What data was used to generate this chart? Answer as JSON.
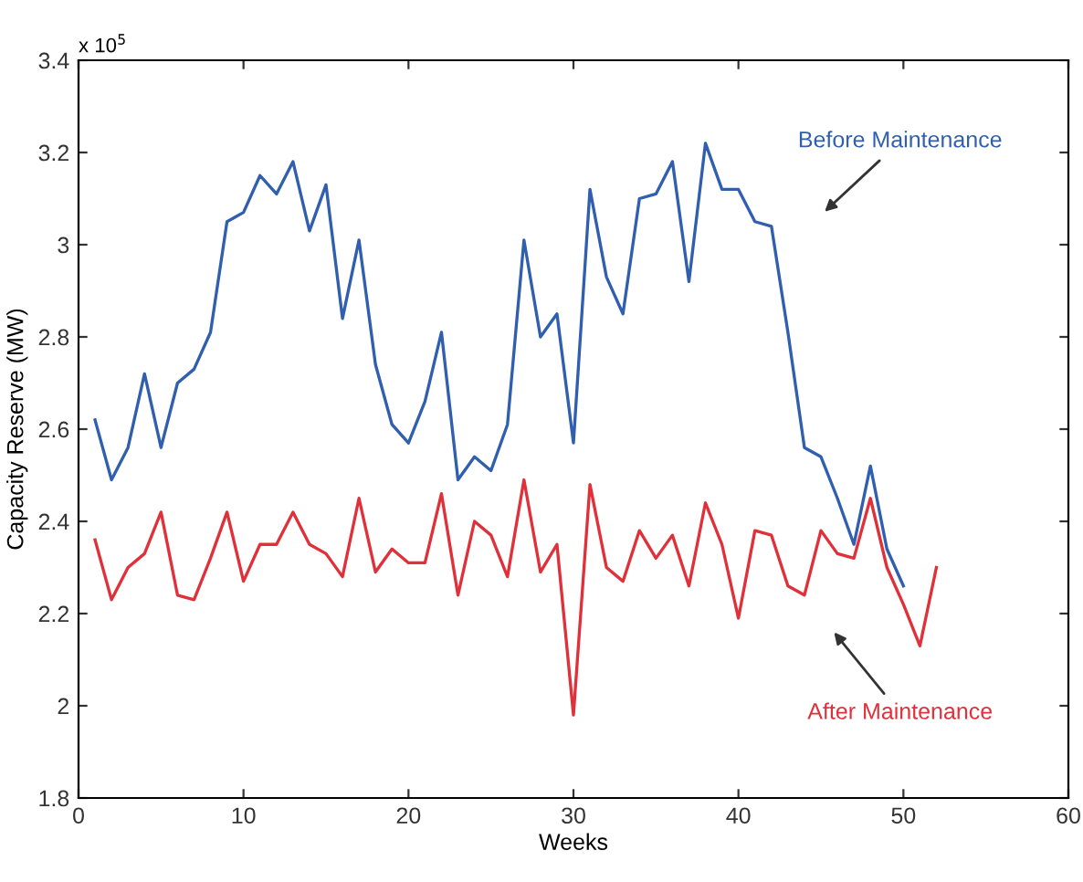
{
  "chart_data": {
    "type": "line",
    "xlabel": "Weeks",
    "ylabel": "Capacity Reserve (MW)",
    "annotations": [
      "x 10$^{5}$"
    ],
    "xlim": [
      0,
      60
    ],
    "xticks": [
      0,
      10,
      20,
      30,
      40,
      50,
      60
    ],
    "ylim": [
      1.8,
      3.4
    ],
    "yticks": [
      1.8,
      2,
      2.2,
      2.4,
      2.6,
      2.8,
      3,
      3.2,
      3.4
    ],
    "grid": false,
    "legend": false,
    "marker": "none",
    "line_style": "solid",
    "series": [
      {
        "name": "Before Maintenance",
        "color": "#2f5fae",
        "x": [
          1,
          2,
          3,
          4,
          5,
          6,
          7,
          8,
          9,
          10,
          11,
          12,
          13,
          14,
          15,
          16,
          17,
          18,
          19,
          20,
          21,
          22,
          23,
          24,
          25,
          26,
          27,
          28,
          29,
          30,
          31,
          32,
          33,
          34,
          35,
          36,
          37,
          38,
          39,
          40,
          41,
          42,
          43,
          44,
          45,
          46,
          47,
          48,
          49,
          50
        ],
        "values": [
          2.62,
          2.49,
          2.56,
          2.72,
          2.56,
          2.7,
          2.73,
          2.81,
          3.05,
          3.07,
          3.15,
          3.11,
          3.18,
          3.03,
          3.13,
          2.84,
          3.01,
          2.74,
          2.61,
          2.57,
          2.66,
          2.81,
          2.49,
          2.54,
          2.51,
          2.61,
          3.01,
          2.8,
          2.85,
          2.57,
          3.12,
          2.93,
          2.85,
          3.1,
          3.11,
          3.18,
          2.92,
          3.22,
          3.12,
          3.12,
          3.05,
          3.04,
          2.81,
          2.56,
          2.54,
          2.45,
          2.35,
          2.52,
          2.34,
          2.26
        ]
      },
      {
        "name": "After Maintenance",
        "color": "#e0303a",
        "x": [
          1,
          2,
          3,
          4,
          5,
          6,
          7,
          8,
          9,
          10,
          11,
          12,
          13,
          14,
          15,
          16,
          17,
          18,
          19,
          20,
          21,
          22,
          23,
          24,
          25,
          26,
          27,
          28,
          29,
          30,
          31,
          32,
          33,
          34,
          35,
          36,
          37,
          38,
          39,
          40,
          41,
          42,
          43,
          44,
          45,
          46,
          47,
          48,
          49,
          50,
          51,
          52
        ],
        "values": [
          2.36,
          2.23,
          2.3,
          2.33,
          2.42,
          2.24,
          2.23,
          2.32,
          2.42,
          2.27,
          2.35,
          2.35,
          2.42,
          2.35,
          2.33,
          2.28,
          2.45,
          2.29,
          2.34,
          2.31,
          2.31,
          2.46,
          2.24,
          2.4,
          2.37,
          2.28,
          2.49,
          2.29,
          2.35,
          1.98,
          2.48,
          2.3,
          2.27,
          2.38,
          2.32,
          2.37,
          2.26,
          2.44,
          2.35,
          2.19,
          2.38,
          2.37,
          2.26,
          2.24,
          2.38,
          2.33,
          2.32,
          2.45,
          2.3,
          2.22,
          2.13,
          2.3
        ]
      }
    ]
  }
}
